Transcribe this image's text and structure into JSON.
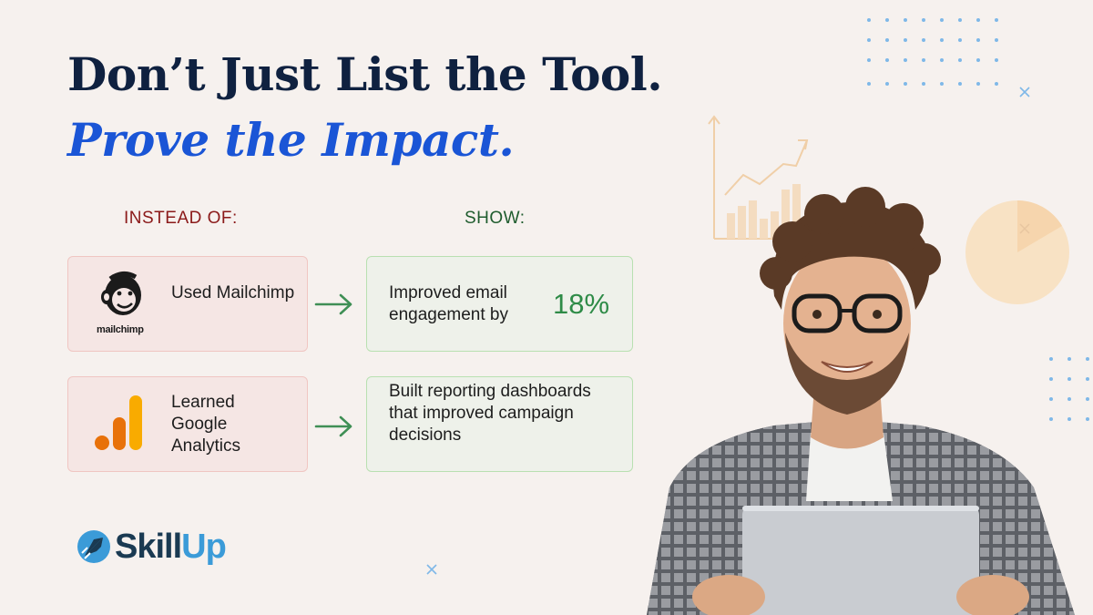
{
  "headline": {
    "line1": "Don’t Just List the Tool.",
    "line2": "Prove the Impact."
  },
  "columns": {
    "instead_label": "INSTEAD OF:",
    "show_label": "SHOW:"
  },
  "rows": [
    {
      "before": {
        "icon": "mailchimp-logo",
        "logo_wordmark": "mailchimp",
        "text": "Used Mailchimp"
      },
      "after": {
        "text": "Improved email engagement by",
        "stat": "18%"
      }
    },
    {
      "before": {
        "icon": "google-analytics-logo",
        "text": "Learned Google Analytics"
      },
      "after": {
        "text": "Built reporting dashboards that improved campaign decisions"
      }
    }
  ],
  "brand": {
    "name_part1": "Skill",
    "name_part2": "Up",
    "icon": "rocket-icon"
  },
  "colors": {
    "background": "#f6f1ee",
    "headline_dark": "#0f2140",
    "headline_blue": "#1a55d6",
    "instead_red": "#8b1a1a",
    "show_green": "#1f5c2e",
    "stat_green": "#2e8b47",
    "arrow_green": "#3f8f55"
  }
}
